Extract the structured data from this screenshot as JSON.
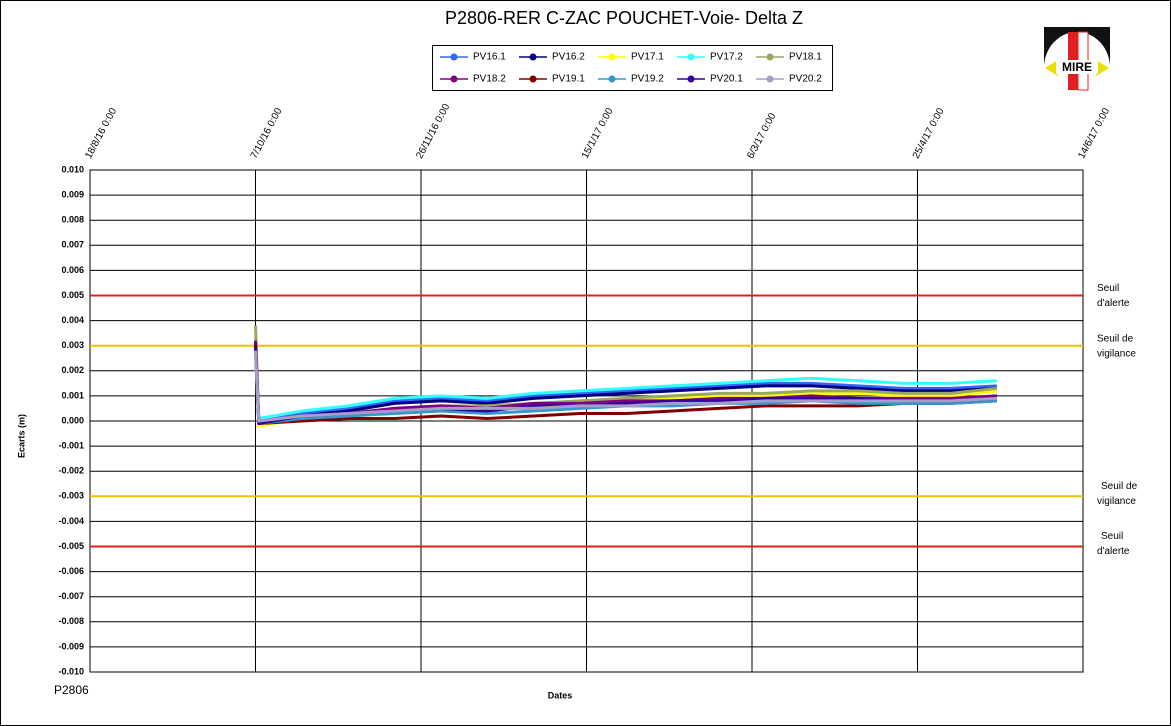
{
  "chart_data": {
    "type": "line",
    "title": "P2806-RER  C-ZAC  POUCHET-Voie-  Delta Z",
    "xlabel": "Dates",
    "ylabel": "Ecarts (m)",
    "footer": "P2806",
    "logo_text": "MIRE",
    "xlim": [
      "2016-08-18",
      "2017-06-14"
    ],
    "xticks": [
      {
        "value": "2016-08-18",
        "label": "18/8/16 0:00"
      },
      {
        "value": "2016-10-07",
        "label": "7/10/16 0:00"
      },
      {
        "value": "2016-11-26",
        "label": "26/11/16 0:00"
      },
      {
        "value": "2017-01-15",
        "label": "15/1/17 0:00"
      },
      {
        "value": "2017-03-06",
        "label": "6/3/17 0:00"
      },
      {
        "value": "2017-04-25",
        "label": "25/4/17 0:00"
      },
      {
        "value": "2017-06-14",
        "label": "14/6/17 0:00"
      }
    ],
    "ylim": [
      -0.01,
      0.01
    ],
    "yticks": [
      {
        "value": 0.01,
        "label": "0.010"
      },
      {
        "value": 0.009,
        "label": "0.009"
      },
      {
        "value": 0.008,
        "label": "0.008"
      },
      {
        "value": 0.007,
        "label": "0.007"
      },
      {
        "value": 0.006,
        "label": "0.006"
      },
      {
        "value": 0.005,
        "label": "0.005"
      },
      {
        "value": 0.004,
        "label": "0.004"
      },
      {
        "value": 0.003,
        "label": "0.003"
      },
      {
        "value": 0.002,
        "label": "0.002"
      },
      {
        "value": 0.001,
        "label": "0.001"
      },
      {
        "value": 0,
        "label": "0.000"
      },
      {
        "value": -0.001,
        "label": "-0.001"
      },
      {
        "value": -0.002,
        "label": "-0.002"
      },
      {
        "value": -0.003,
        "label": "-0.003"
      },
      {
        "value": -0.004,
        "label": "-0.004"
      },
      {
        "value": -0.005,
        "label": "-0.005"
      },
      {
        "value": -0.006,
        "label": "-0.006"
      },
      {
        "value": -0.007,
        "label": "-0.007"
      },
      {
        "value": -0.008,
        "label": "-0.008"
      },
      {
        "value": -0.009,
        "label": "-0.009"
      },
      {
        "value": -0.01,
        "label": "-0.010"
      }
    ],
    "grid": true,
    "thresholds": [
      {
        "value": 0.005,
        "color": "#e0201b",
        "label": [
          "Seuil",
          "d'alerte"
        ]
      },
      {
        "value": 0.003,
        "color": "#e8c400",
        "label": [
          "Seuil de",
          "vigilance"
        ]
      },
      {
        "value": -0.003,
        "color": "#e8c400",
        "label": [
          "Seuil de",
          "vigilance"
        ]
      },
      {
        "value": -0.005,
        "color": "#e0201b",
        "label": [
          "Seuil",
          "d'alerte"
        ]
      }
    ],
    "x": [
      "2016-10-07",
      "2016-10-08",
      "2016-10-21",
      "2016-11-04",
      "2016-11-18",
      "2016-12-02",
      "2016-12-16",
      "2016-12-30",
      "2017-01-13",
      "2017-01-27",
      "2017-02-10",
      "2017-02-24",
      "2017-03-10",
      "2017-03-24",
      "2017-04-07",
      "2017-04-21",
      "2017-05-05",
      "2017-05-19"
    ],
    "series": [
      {
        "name": "PV16.1",
        "color": "#3366ff",
        "values": [
          0.003,
          0.0001,
          0.0003,
          0.0005,
          0.0008,
          0.0009,
          0.0008,
          0.001,
          0.0011,
          0.0012,
          0.0013,
          0.0014,
          0.0015,
          0.0015,
          0.0014,
          0.0013,
          0.0013,
          0.0014
        ]
      },
      {
        "name": "PV16.2",
        "color": "#000080",
        "values": [
          0.0029,
          0.0,
          0.0002,
          0.0004,
          0.0007,
          0.0008,
          0.0007,
          0.0009,
          0.001,
          0.0011,
          0.0012,
          0.0013,
          0.0014,
          0.0014,
          0.0013,
          0.0012,
          0.0012,
          0.0013
        ]
      },
      {
        "name": "PV17.1",
        "color": "#ffff00",
        "values": [
          0.0029,
          -0.0002,
          0.0001,
          0.0002,
          0.0004,
          0.0005,
          0.0005,
          0.0006,
          0.0007,
          0.0008,
          0.0009,
          0.001,
          0.001,
          0.0011,
          0.0011,
          0.001,
          0.001,
          0.0012
        ]
      },
      {
        "name": "PV17.2",
        "color": "#33ffff",
        "values": [
          0.0033,
          0.0001,
          0.0004,
          0.0006,
          0.0009,
          0.001,
          0.0009,
          0.0011,
          0.0012,
          0.0013,
          0.0014,
          0.0015,
          0.0016,
          0.0017,
          0.0016,
          0.0015,
          0.0015,
          0.0016
        ]
      },
      {
        "name": "PV18.1",
        "color": "#99a860",
        "values": [
          0.0038,
          -0.0001,
          0.0002,
          0.0003,
          0.0005,
          0.0006,
          0.0006,
          0.0007,
          0.0008,
          0.0009,
          0.001,
          0.0011,
          0.0011,
          0.0012,
          0.0012,
          0.0011,
          0.0011,
          0.0013
        ]
      },
      {
        "name": "PV18.2",
        "color": "#800080",
        "values": [
          0.0032,
          0.0,
          0.0002,
          0.0003,
          0.0005,
          0.0006,
          0.0005,
          0.0007,
          0.0007,
          0.0008,
          0.0008,
          0.0009,
          0.0009,
          0.001,
          0.0009,
          0.0009,
          0.0009,
          0.001
        ]
      },
      {
        "name": "PV19.1",
        "color": "#800000",
        "values": [
          0.0031,
          -0.0001,
          0.0,
          0.0001,
          0.0001,
          0.0002,
          0.0001,
          0.0002,
          0.0003,
          0.0003,
          0.0004,
          0.0005,
          0.0006,
          0.0006,
          0.0006,
          0.0007,
          0.0007,
          0.0008
        ]
      },
      {
        "name": "PV19.2",
        "color": "#3399cc",
        "values": [
          0.0027,
          -0.0001,
          0.0001,
          0.0002,
          0.0003,
          0.0004,
          0.0003,
          0.0004,
          0.0005,
          0.0006,
          0.0006,
          0.0007,
          0.0007,
          0.0008,
          0.0007,
          0.0007,
          0.0007,
          0.0008
        ]
      },
      {
        "name": "PV20.1",
        "color": "#330099",
        "values": [
          0.003,
          -0.0001,
          0.0002,
          0.0003,
          0.0004,
          0.0005,
          0.0004,
          0.0006,
          0.0006,
          0.0007,
          0.0008,
          0.0008,
          0.0009,
          0.0009,
          0.0009,
          0.0008,
          0.0008,
          0.0009
        ]
      },
      {
        "name": "PV20.2",
        "color": "#a99cc8",
        "values": [
          0.0028,
          0.0,
          0.0002,
          0.0003,
          0.0004,
          0.0005,
          0.0005,
          0.0005,
          0.0006,
          0.0006,
          0.0007,
          0.0007,
          0.0008,
          0.0008,
          0.0008,
          0.0008,
          0.0008,
          0.0009
        ]
      }
    ]
  }
}
